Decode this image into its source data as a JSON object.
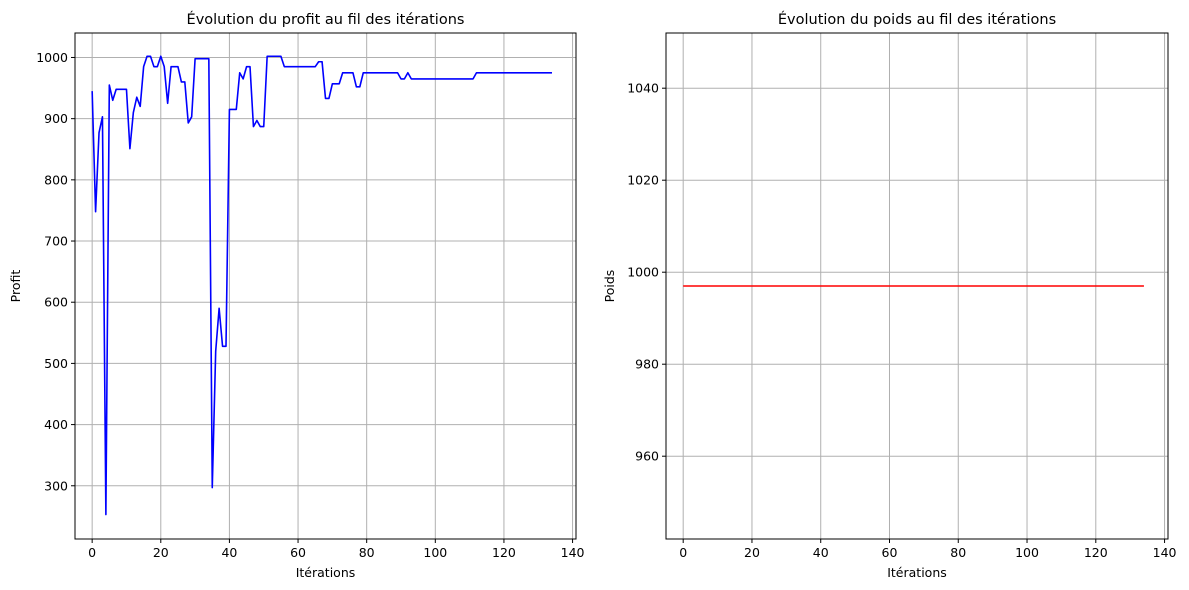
{
  "chart_data": [
    {
      "type": "line",
      "title": "Évolution du profit au fil des itérations",
      "xlabel": "Itérations",
      "ylabel": "Profit",
      "xlim": [
        -5,
        141
      ],
      "ylim": [
        213,
        1040
      ],
      "xticks": [
        0,
        20,
        40,
        60,
        80,
        100,
        120,
        140
      ],
      "yticks": [
        300,
        400,
        500,
        600,
        700,
        800,
        900,
        1000
      ],
      "grid": true,
      "series": [
        {
          "color": "#0000ff",
          "x": [
            0,
            1,
            2,
            3,
            4,
            5,
            6,
            7,
            8,
            9,
            10,
            11,
            12,
            13,
            14,
            15,
            16,
            17,
            18,
            19,
            20,
            21,
            22,
            23,
            24,
            25,
            26,
            27,
            28,
            29,
            30,
            31,
            32,
            33,
            34,
            35,
            36,
            37,
            38,
            39,
            40,
            41,
            42,
            43,
            44,
            45,
            46,
            47,
            48,
            49,
            50,
            51,
            52,
            53,
            54,
            55,
            56,
            57,
            58,
            59,
            60,
            61,
            62,
            63,
            64,
            65,
            66,
            67,
            68,
            69,
            70,
            71,
            72,
            73,
            74,
            75,
            76,
            77,
            78,
            79,
            80,
            81,
            82,
            83,
            84,
            85,
            86,
            87,
            88,
            89,
            90,
            91,
            92,
            93,
            94,
            95,
            96,
            97,
            98,
            99,
            100,
            101,
            102,
            103,
            104,
            105,
            106,
            107,
            108,
            109,
            110,
            111,
            112,
            113,
            114,
            115,
            116,
            117,
            118,
            119,
            120,
            121,
            122,
            123,
            124,
            125,
            126,
            127,
            128,
            129,
            130,
            131,
            132,
            133,
            134
          ],
          "values": [
            945,
            748,
            877,
            903,
            253,
            955,
            930,
            948,
            948,
            948,
            948,
            851,
            910,
            935,
            920,
            985,
            1002,
            1002,
            985,
            985,
            1002,
            985,
            925,
            985,
            985,
            985,
            960,
            960,
            893,
            903,
            998,
            998,
            998,
            998,
            998,
            297,
            520,
            590,
            528,
            528,
            915,
            915,
            915,
            975,
            965,
            985,
            985,
            887,
            897,
            887,
            887,
            1002,
            1002,
            1002,
            1002,
            1002,
            985,
            985,
            985,
            985,
            985,
            985,
            985,
            985,
            985,
            985,
            993,
            993,
            933,
            933,
            957,
            957,
            957,
            975,
            975,
            975,
            975,
            952,
            952,
            975,
            975,
            975,
            975,
            975,
            975,
            975,
            975,
            975,
            975,
            975,
            965,
            965,
            975,
            965,
            965,
            965,
            965,
            965,
            965,
            965,
            965,
            965,
            965,
            965,
            965,
            965,
            965,
            965,
            965,
            965,
            965,
            965,
            975,
            975,
            975,
            975,
            975,
            975,
            975,
            975,
            975,
            975,
            975,
            975,
            975,
            975,
            975,
            975,
            975,
            975,
            975,
            975,
            975,
            975,
            975
          ]
        }
      ]
    },
    {
      "type": "line",
      "title": "Évolution du poids au fil des itérations",
      "xlabel": "Itérations",
      "ylabel": "Poids",
      "xlim": [
        -5,
        141
      ],
      "ylim": [
        942,
        1052
      ],
      "xticks": [
        0,
        20,
        40,
        60,
        80,
        100,
        120,
        140
      ],
      "yticks": [
        960,
        980,
        1000,
        1020,
        1040
      ],
      "grid": true,
      "series": [
        {
          "color": "#ff0000",
          "x": [
            0,
            134
          ],
          "values": [
            997,
            997
          ]
        }
      ]
    }
  ]
}
